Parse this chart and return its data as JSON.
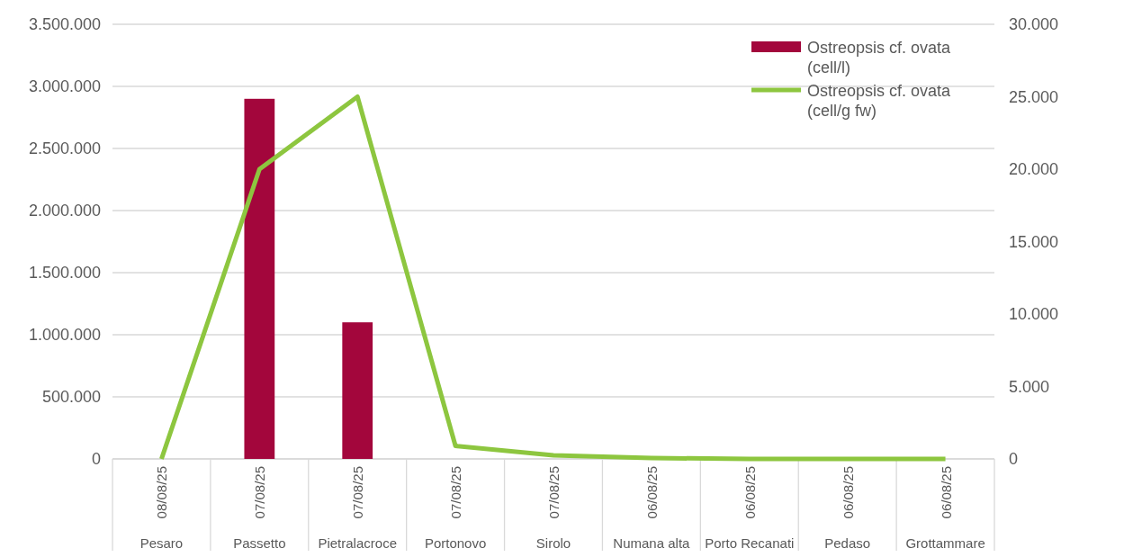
{
  "chart_data": {
    "type": "bar",
    "categories": [
      "08/08/25 Pesaro",
      "07/08/25 Passetto",
      "07/08/25 Pietralacroce",
      "07/08/25 Portonovo",
      "07/08/25 Sirolo",
      "06/08/25 Numana alta",
      "06/08/25 Porto Recanati",
      "06/08/25 Pedaso",
      "06/08/25 Grottammare"
    ],
    "series": [
      {
        "name": "Ostreopsis cf. ovata (cell/l)",
        "color": "#a3063c",
        "values": [
          0,
          2900000,
          1100000,
          0,
          0,
          0,
          0,
          0,
          0
        ]
      },
      {
        "name": "Ostreopsis cf. ovata (cell/g fw)",
        "type": "line",
        "axis": "y2",
        "color": "#8dc63f",
        "values": [
          0,
          20000,
          25000,
          900,
          250,
          60,
          0,
          0,
          0
        ]
      }
    ],
    "ylim": [
      0,
      3500000
    ],
    "yticks": [
      {
        "value": 0,
        "label": "0"
      },
      {
        "value": 500000,
        "label": "500.000"
      },
      {
        "value": 1000000,
        "label": "1.000.000"
      },
      {
        "value": 1500000,
        "label": "1.500.000"
      },
      {
        "value": 2000000,
        "label": "2.000.000"
      },
      {
        "value": 2500000,
        "label": "2.500.000"
      },
      {
        "value": 3000000,
        "label": "3.000.000"
      },
      {
        "value": 3500000,
        "label": "3.500.000"
      }
    ],
    "y2lim": [
      0,
      30000
    ],
    "y2ticks": [
      {
        "value": 0,
        "label": "0"
      },
      {
        "value": 5000,
        "label": "5.000"
      },
      {
        "value": 10000,
        "label": "10.000"
      },
      {
        "value": 15000,
        "label": "15.000"
      },
      {
        "value": 20000,
        "label": "20.000"
      },
      {
        "value": 25000,
        "label": "25.000"
      },
      {
        "value": 30000,
        "label": "30.000"
      }
    ],
    "grid": "y",
    "legend": "top right",
    "marker": "none",
    "line_style": "solid"
  }
}
